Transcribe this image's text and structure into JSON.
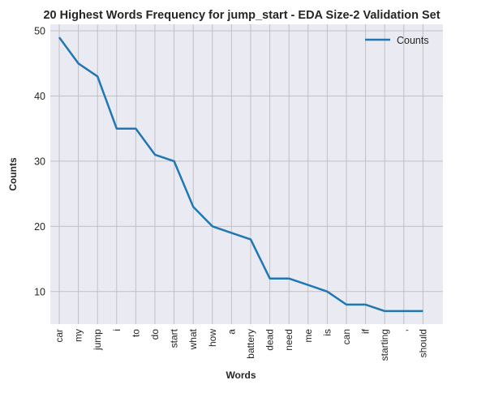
{
  "chart_data": {
    "type": "line",
    "title": "20 Highest Words Frequency for jump_start - EDA Size-2 Validation Set",
    "xlabel": "Words",
    "ylabel": "Counts",
    "categories": [
      "car",
      "my",
      "jump",
      "i",
      "to",
      "do",
      "start",
      "what",
      "how",
      "a",
      "battery",
      "dead",
      "need",
      "me",
      "is",
      "can",
      "if",
      "starting",
      ",",
      "should"
    ],
    "series": [
      {
        "name": "Counts",
        "values": [
          49,
          45,
          43,
          35,
          35,
          31,
          30,
          23,
          20,
          19,
          18,
          12,
          12,
          11,
          10,
          8,
          8,
          7,
          7,
          7
        ],
        "color": "#1f77b4"
      }
    ],
    "ylim": [
      5,
      51
    ],
    "yticks": [
      10,
      20,
      30,
      40,
      50
    ],
    "grid": true,
    "legend": "top-right",
    "background": "#eaeaf2",
    "grid_color": "#c0c0c4"
  }
}
